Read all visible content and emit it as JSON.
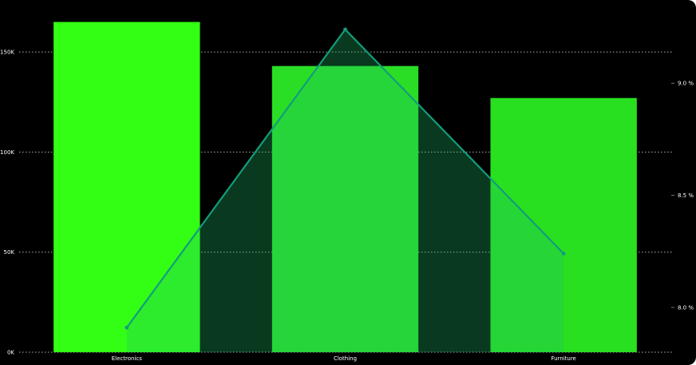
{
  "chart_data": {
    "type": "bar",
    "categories": [
      "Electronics",
      "Clothing",
      "Furniture"
    ],
    "series": [
      {
        "axis": "left",
        "type": "bar",
        "values": [
          165000,
          143000,
          127000
        ],
        "colors": [
          "#33ff14",
          "#2ade26",
          "#29e020"
        ]
      },
      {
        "axis": "right",
        "type": "area-line",
        "values": [
          7.91,
          9.24,
          8.24
        ],
        "line_color": "#139c7c",
        "fill_color": "#1fc06a"
      }
    ],
    "left_axis": {
      "ticks": [
        "0K",
        "50K",
        "100K",
        "150K"
      ],
      "tick_values": [
        0,
        50000,
        100000,
        150000
      ],
      "ylim": [
        0,
        168000
      ]
    },
    "right_axis": {
      "ticks": [
        "8.0 %",
        "8.5 %",
        "9.0 %"
      ],
      "tick_values": [
        8.0,
        8.5,
        9.0
      ],
      "ylim": [
        7.8,
        9.3
      ]
    },
    "grid": true,
    "background": "#000000"
  }
}
